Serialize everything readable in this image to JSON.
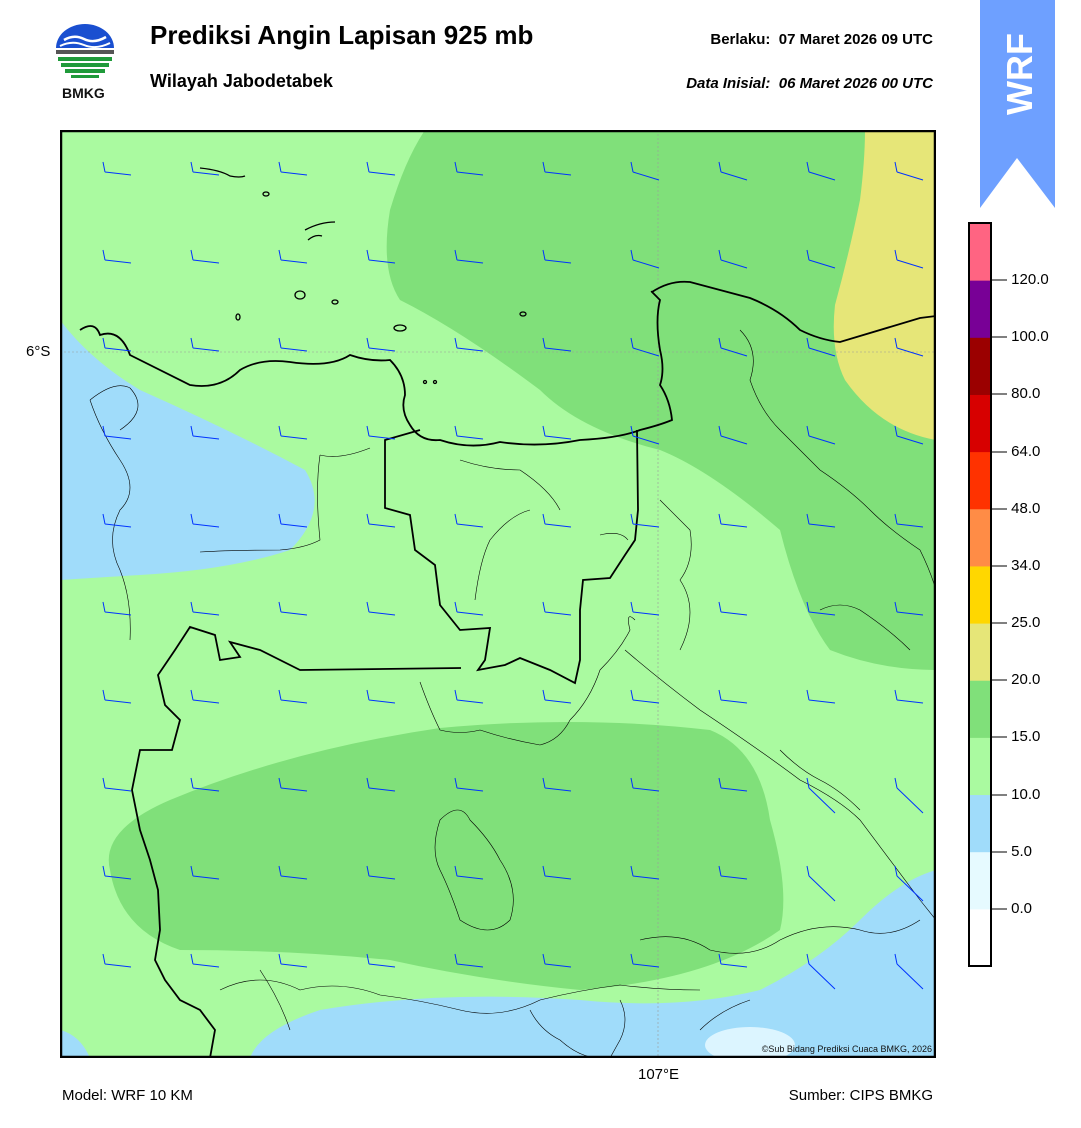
{
  "header": {
    "title": "Prediksi Angin Lapisan 925 mb",
    "region": "Wilayah Jabodetabek",
    "valid_label": "Berlaku:",
    "valid_time": "07 Maret 2026 09 UTC",
    "init_label": "Data Inisial:",
    "init_time": "06 Maret 2026 00 UTC",
    "org": "BMKG",
    "model_tag": "WRF"
  },
  "map": {
    "lat_label": "6°S",
    "lon_label": "107°E",
    "copyright": "©Sub Bidang Prediksi Cuaca BMKG, 2026",
    "colors": {
      "below5": "#a0dcfa",
      "c5_10": "#a0dcfa",
      "c10_15": "#aafaa0",
      "c15_20": "#80e07a",
      "c20_25": "#e6e678",
      "barb": "#0033ff",
      "border": "#000000"
    }
  },
  "colorbar": {
    "levels": [
      "0.0",
      "5.0",
      "10.0",
      "15.0",
      "20.0",
      "25.0",
      "34.0",
      "48.0",
      "64.0",
      "80.0",
      "100.0",
      "120.0"
    ],
    "colors": [
      "#ffffff",
      "#e6faff",
      "#a0dcfa",
      "#aafaa0",
      "#80e07a",
      "#e6e678",
      "#ffd700",
      "#ff8c46",
      "#ff3200",
      "#d70000",
      "#9b0000",
      "#780096",
      "#ff6482"
    ]
  },
  "footer": {
    "model": "Model: WRF 10 KM",
    "source": "Sumber: CIPS BMKG"
  }
}
